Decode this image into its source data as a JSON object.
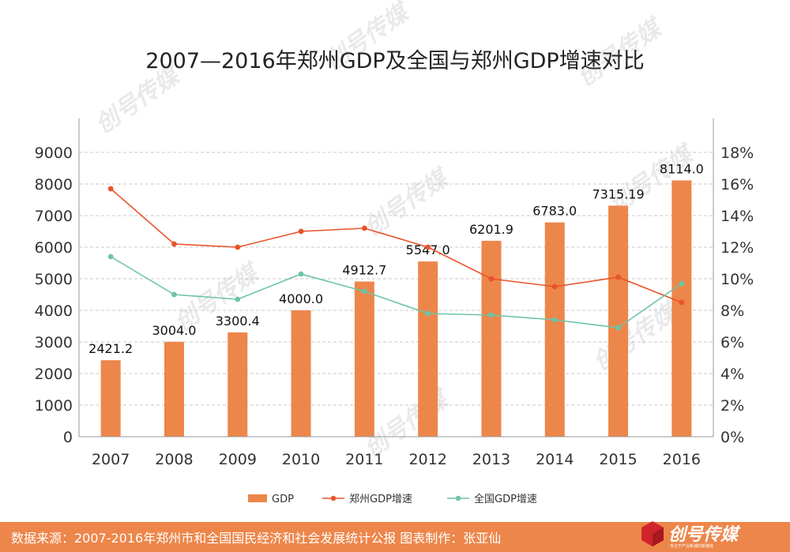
{
  "chart_data": {
    "type": "bar+line",
    "title": "2007—2016年郑州GDP及全国与郑州GDP增速对比",
    "categories": [
      "2007",
      "2008",
      "2009",
      "2010",
      "2011",
      "2012",
      "2013",
      "2014",
      "2015",
      "2016"
    ],
    "bar_series": {
      "name": "GDP",
      "values": [
        2421.2,
        3004.0,
        3300.4,
        4000.0,
        4912.7,
        5547.0,
        6201.9,
        6783.0,
        7315.19,
        8114.0
      ],
      "labels": [
        "2421.2",
        "3004.0",
        "3300.4",
        "4000.0",
        "4912.7",
        "5547.0",
        "6201.9",
        "6783.0",
        "7315.19",
        "8114.0"
      ],
      "color": "#ED864A"
    },
    "line_series": [
      {
        "name": "郑州GDP增速",
        "values": [
          15.7,
          12.2,
          12.0,
          13.0,
          13.2,
          12.0,
          10.0,
          9.5,
          10.1,
          8.5
        ],
        "color": "#E8532A"
      },
      {
        "name": "全国GDP增速",
        "values": [
          11.4,
          9.0,
          8.7,
          10.3,
          9.2,
          7.8,
          7.7,
          7.4,
          6.9,
          9.7
        ],
        "color": "#6CC4A7"
      }
    ],
    "y_left": {
      "range": [
        0,
        9000
      ],
      "ticks": [
        "0",
        "1000",
        "2000",
        "3000",
        "4000",
        "5000",
        "6000",
        "7000",
        "8000",
        "9000"
      ]
    },
    "y_right": {
      "range": [
        0,
        18
      ],
      "ticks": [
        "0%",
        "2%",
        "4%",
        "6%",
        "8%",
        "10%",
        "12%",
        "14%",
        "16%",
        "18%"
      ]
    },
    "grid": true,
    "legend_position": "bottom"
  },
  "footer": {
    "source": "数据来源：2007-2016年郑州市和全国国民经济和社会发展统计公报  图表制作：张亚仙",
    "background": "#ED864A"
  },
  "brand": {
    "logo_text": "创号传媒",
    "tagline": "专注于产业新城的新媒体"
  }
}
